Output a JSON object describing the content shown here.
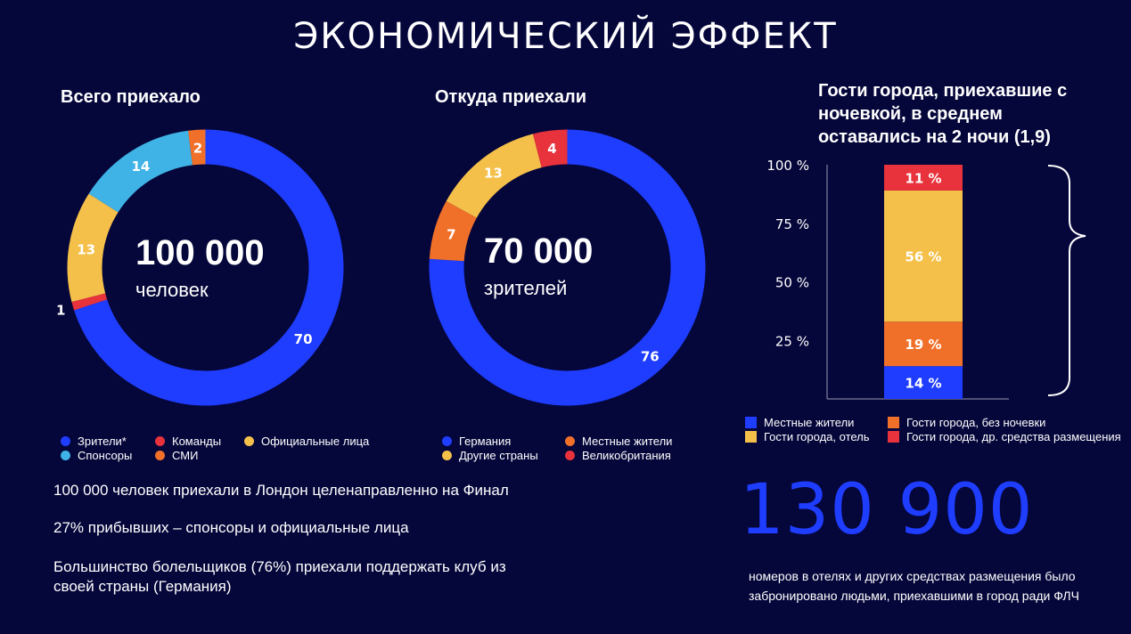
{
  "title": "ЭКОНОМИЧЕСКИЙ ЭФФЕКТ",
  "colors": {
    "background": "#05063a",
    "blue": "#1f3dff",
    "red": "#e8323c",
    "yellow": "#f5c04a",
    "light_blue": "#3fb3e6",
    "orange": "#f0702a",
    "bracket": "#ffffff"
  },
  "chart_data": [
    {
      "type": "pie",
      "style": "donut",
      "title": "Всего приехало",
      "center_value": "100 000",
      "center_label": "человек",
      "slices": [
        {
          "label": "Зрители*",
          "value": 70,
          "color": "#1f3dff"
        },
        {
          "label": "Команды",
          "value": 1,
          "color": "#e8323c"
        },
        {
          "label": "Официальные лица",
          "value": 13,
          "color": "#f5c04a"
        },
        {
          "label": "Спонсоры",
          "value": 14,
          "color": "#3fb3e6"
        },
        {
          "label": "СМИ",
          "value": 2,
          "color": "#f0702a"
        }
      ],
      "legend": [
        "Зрители*",
        "Команды",
        "Официальные лица",
        "Спонсоры",
        "СМИ"
      ]
    },
    {
      "type": "pie",
      "style": "donut",
      "title": "Откуда приехали",
      "center_value": "70 000",
      "center_label": "зрителей",
      "slices": [
        {
          "label": "Германия",
          "value": 76,
          "color": "#1f3dff"
        },
        {
          "label": "Местные жители",
          "value": 7,
          "color": "#f0702a"
        },
        {
          "label": "Другие страны",
          "value": 13,
          "color": "#f5c04a"
        },
        {
          "label": "Великобритания",
          "value": 4,
          "color": "#e8323c"
        }
      ],
      "legend": [
        "Германия",
        "Местные жители",
        "Другие страны",
        "Великобритания"
      ]
    },
    {
      "type": "bar",
      "style": "stacked-100",
      "title": "Гости города, приехавшие с ночевкой, в среднем оставались на 2 ночи (1,9)",
      "y_ticks": [
        "100 %",
        "75 %",
        "50 %",
        "25 %"
      ],
      "ylim": [
        0,
        100
      ],
      "segments": [
        {
          "label": "Местные жители",
          "value": 14,
          "display": "14 %",
          "color": "#1f3dff"
        },
        {
          "label": "Гости города, без ночевки",
          "value": 19,
          "display": "19 %",
          "color": "#f0702a"
        },
        {
          "label": "Гости города, отель",
          "value": 56,
          "display": "56 %",
          "color": "#f5c04a"
        },
        {
          "label": "Гости города, др. средства размещения",
          "value": 11,
          "display": "11 %",
          "color": "#e8323c"
        }
      ]
    }
  ],
  "notes": [
    "100 000 человек приехали в Лондон целенаправленно на Финал",
    "27% прибывших – спонсоры и официальные лица",
    "Большинство болельщиков (76%) приехали поддержать клуб из своей страны (Германия)"
  ],
  "big_number": "130 900",
  "big_number_description": "номеров в отелях и других средствах размещения было забронировано людьми, приехавшими в город ради ФЛЧ"
}
